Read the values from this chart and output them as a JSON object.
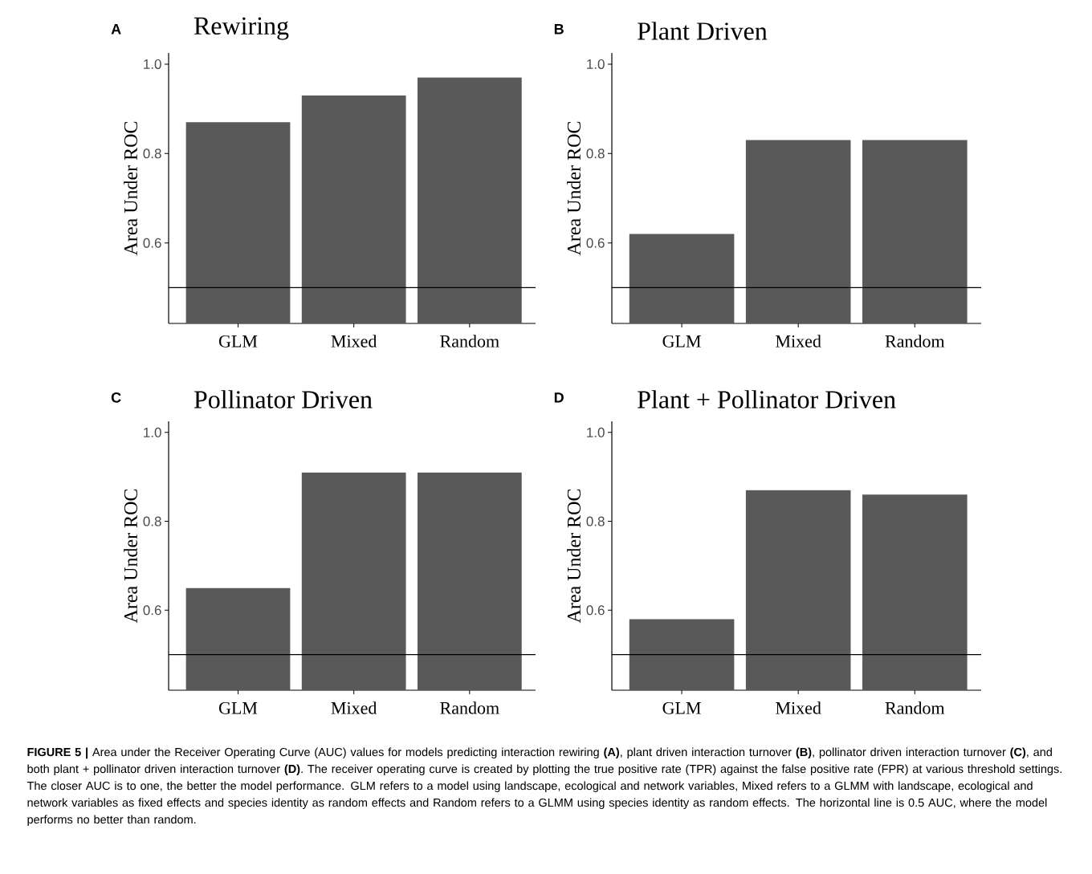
{
  "chart_data": [
    {
      "type": "bar",
      "title": "Rewiring",
      "ylabel": "Area Under ROC",
      "categories": [
        "GLM",
        "Mixed",
        "Random"
      ],
      "values": [
        0.87,
        0.93,
        0.97
      ],
      "color": "#595959",
      "ylim": [
        0.42,
        1.025
      ],
      "yticks": [
        {
          "value": 0.6,
          "label": "0.6"
        },
        {
          "value": 0.8,
          "label": "0.8"
        },
        {
          "value": 1,
          "label": "1.0"
        }
      ],
      "ref_lines": [
        {
          "axis": "y",
          "value": 0.5,
          "color": "#000000"
        }
      ],
      "grid": false,
      "annotations": [
        "A"
      ]
    },
    {
      "type": "bar",
      "title": "Plant Driven",
      "ylabel": "Area Under ROC",
      "categories": [
        "GLM",
        "Mixed",
        "Random"
      ],
      "values": [
        0.62,
        0.83,
        0.83
      ],
      "color": "#595959",
      "ylim": [
        0.42,
        1.025
      ],
      "yticks": [
        {
          "value": 0.6,
          "label": "0.6"
        },
        {
          "value": 0.8,
          "label": "0.8"
        },
        {
          "value": 1,
          "label": "1.0"
        }
      ],
      "ref_lines": [
        {
          "axis": "y",
          "value": 0.5,
          "color": "#000000"
        }
      ],
      "grid": false,
      "annotations": [
        "B"
      ]
    },
    {
      "type": "bar",
      "title": "Pollinator Driven",
      "ylabel": "Area Under ROC",
      "categories": [
        "GLM",
        "Mixed",
        "Random"
      ],
      "values": [
        0.65,
        0.91,
        0.91
      ],
      "color": "#595959",
      "ylim": [
        0.42,
        1.025
      ],
      "yticks": [
        {
          "value": 0.6,
          "label": "0.6"
        },
        {
          "value": 0.8,
          "label": "0.8"
        },
        {
          "value": 1,
          "label": "1.0"
        }
      ],
      "ref_lines": [
        {
          "axis": "y",
          "value": 0.5,
          "color": "#000000"
        }
      ],
      "grid": false,
      "annotations": [
        "C"
      ]
    },
    {
      "type": "bar",
      "title": "Plant + Pollinator Driven",
      "ylabel": "Area Under ROC",
      "categories": [
        "GLM",
        "Mixed",
        "Random"
      ],
      "values": [
        0.58,
        0.87,
        0.86
      ],
      "color": "#595959",
      "ylim": [
        0.42,
        1.025
      ],
      "yticks": [
        {
          "value": 0.6,
          "label": "0.6"
        },
        {
          "value": 0.8,
          "label": "0.8"
        },
        {
          "value": 1,
          "label": "1.0"
        }
      ],
      "ref_lines": [
        {
          "axis": "y",
          "value": 0.5,
          "color": "#000000"
        }
      ],
      "grid": false,
      "annotations": [
        "D",
        "**FIGURE 5 |** Area under the Receiver Operating Curve (AUC) values for models predicting interaction rewiring **(A)**, plant driven interaction turnover **(B)**, pollinator driven interaction turnover **(C)**, and both plant + pollinator driven interaction turnover **(D)**. The receiver operating curve is created by plotting the true positive rate (TPR) against the false positive rate (FPR) at various threshold settings. The closer AUC is to one, the better the model performance. GLM refers to a model using landscape, ecological and network variables, Mixed refers to a GLMM with landscape, ecological and network variables as fixed effects and species identity as random effects and Random refers to a GLMM using species identity as random effects. The horizontal line is 0.5 AUC, where the model performs no better than random."
      ]
    }
  ]
}
